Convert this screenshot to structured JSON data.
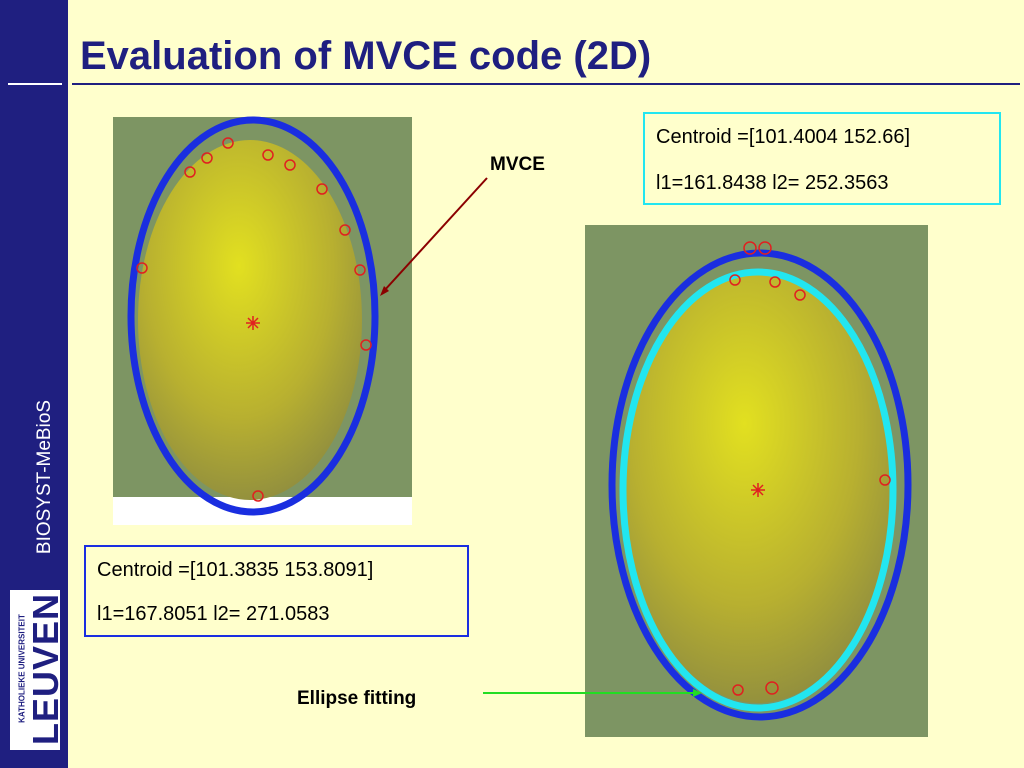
{
  "header": {
    "title": "Evaluation of MVCE code (2D)"
  },
  "sidebar": {
    "group": "BIOSYST-MeBioS",
    "university_line": "KATHOLIEKE UNIVERSITEIT",
    "university_name": "LEUVEN"
  },
  "labels": {
    "mvce": "MVCE",
    "ellipse_fitting": "Ellipse fitting"
  },
  "boxes": [
    {
      "centroid": "Centroid =[101.4004 152.66]",
      "axes": "l1=161.8438  l2= 252.3563"
    },
    {
      "centroid": "Centroid =[101.3835 153.8091]",
      "axes": "l1=167.8051  l2= 271.0583"
    }
  ]
}
